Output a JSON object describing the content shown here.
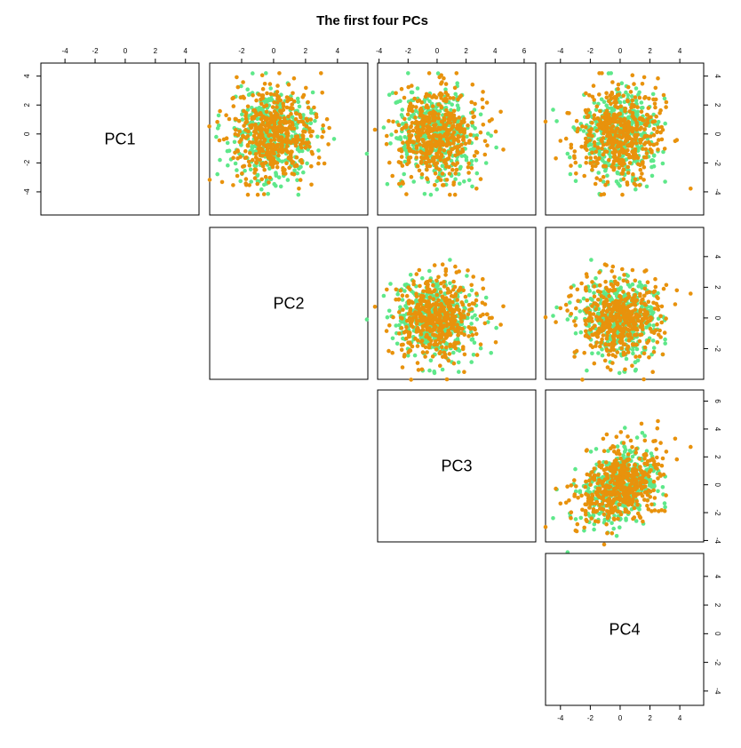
{
  "chart_data": {
    "type": "scatter",
    "layout": "pairs-upper-triangle",
    "title": "The first four PCs",
    "variables": [
      "PC1",
      "PC2",
      "PC3",
      "PC4"
    ],
    "colors": {
      "group_a": "#e8920c",
      "group_b": "#5ee88a"
    },
    "axes": {
      "PC1": {
        "range": [
          -5.6,
          4.9
        ],
        "ticks": [
          -4,
          -2,
          0,
          2,
          4
        ]
      },
      "PC2": {
        "range": [
          -4.0,
          5.9
        ],
        "ticks": [
          -2,
          0,
          2,
          4
        ]
      },
      "PC3": {
        "range": [
          -4.1,
          6.8
        ],
        "ticks": [
          -4,
          -2,
          0,
          2,
          4,
          6
        ]
      },
      "PC4": {
        "range": [
          -5.0,
          5.6
        ],
        "ticks": [
          -4,
          -2,
          0,
          2,
          4
        ]
      }
    },
    "distribution": {
      "PC1": {
        "sd": 1.55,
        "max_abs": 4.2
      },
      "PC2": {
        "sd": 1.3,
        "max_abs": 4.8
      },
      "PC3": {
        "sd": 1.4,
        "max_abs": 5.2
      },
      "PC4": {
        "sd": 1.35,
        "max_abs": 5.0
      },
      "correlation_PC3_PC4": 0.3
    },
    "grid": false,
    "legend": "none"
  }
}
